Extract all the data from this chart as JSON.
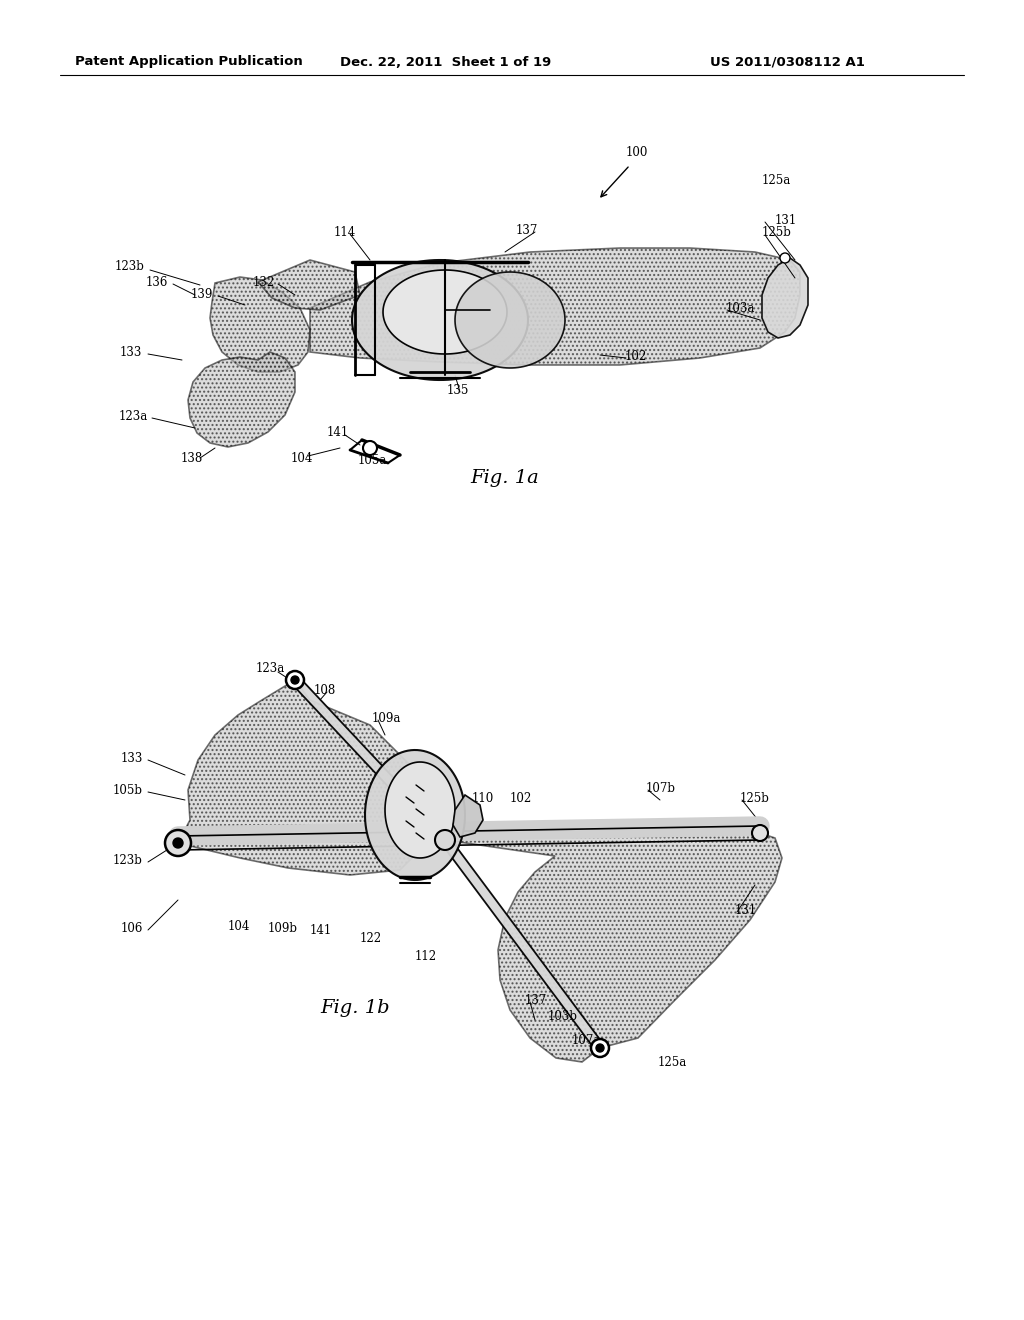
{
  "bg_color": "#ffffff",
  "header_left": "Patent Application Publication",
  "header_mid": "Dec. 22, 2011  Sheet 1 of 19",
  "header_right": "US 2011/0308112 A1",
  "fig1a_label": "Fig. 1a",
  "fig1b_label": "Fig. 1b",
  "hatch_density": "....",
  "shade_color": "#c0c0c0",
  "shade_alpha": 0.55
}
